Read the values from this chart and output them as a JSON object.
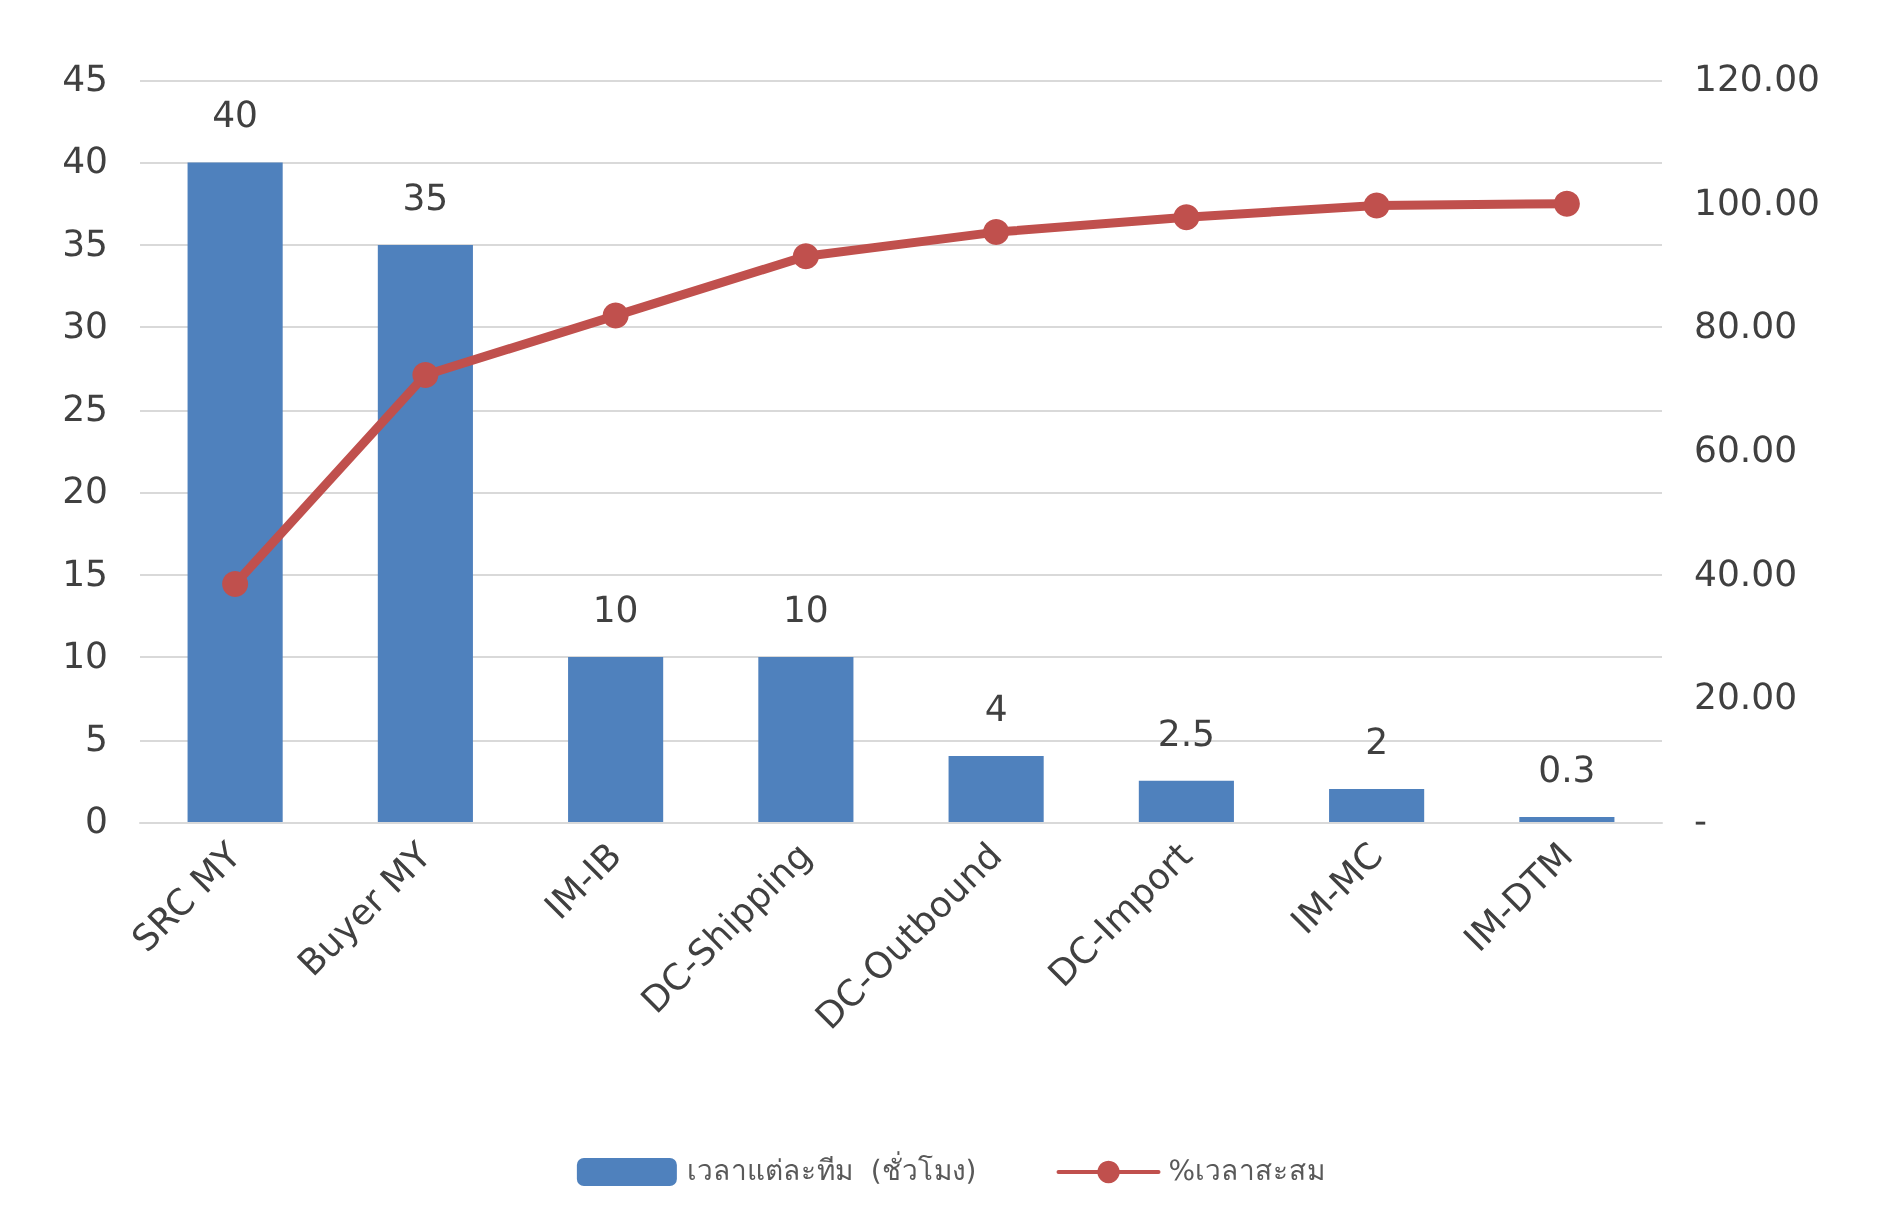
{
  "chart_data": {
    "type": "bar",
    "categories": [
      "SRC MY",
      "Buyer MY",
      "IM-IB",
      "DC-Shipping",
      "DC-Outbound",
      "DC-Import",
      "IM-MC",
      "IM-DTM"
    ],
    "series": [
      {
        "name": "เวลาแต่ละทีม  (ชั่วโมง)",
        "color": "#4f81bd",
        "values": [
          40,
          35,
          10,
          10,
          4,
          2.5,
          2,
          0.3
        ],
        "value_labels": [
          "40",
          "35",
          "10",
          "10",
          "4",
          "2.5",
          "2",
          "0.3"
        ]
      },
      {
        "name": "%เวลาสะสม",
        "type": "line",
        "axis": "y2",
        "color": "#c0504d",
        "values": [
          38.5,
          72.3,
          81.9,
          91.5,
          95.4,
          97.8,
          99.7,
          100
        ]
      }
    ],
    "ylim": [
      0,
      45
    ],
    "yticks": [
      0,
      5,
      10,
      15,
      20,
      25,
      30,
      35,
      40,
      45
    ],
    "y2lim": [
      0,
      120
    ],
    "y2ticks": [
      {
        "value": 0,
        "label": "-"
      },
      {
        "value": 20,
        "label": "20.00"
      },
      {
        "value": 40,
        "label": "40.00"
      },
      {
        "value": 60,
        "label": "60.00"
      },
      {
        "value": 80,
        "label": "80.00"
      },
      {
        "value": 100,
        "label": "100.00"
      },
      {
        "value": 120,
        "label": "120.00"
      }
    ],
    "grid": "y",
    "legend": "bottom",
    "marker": "circle",
    "line_style": "solid"
  }
}
